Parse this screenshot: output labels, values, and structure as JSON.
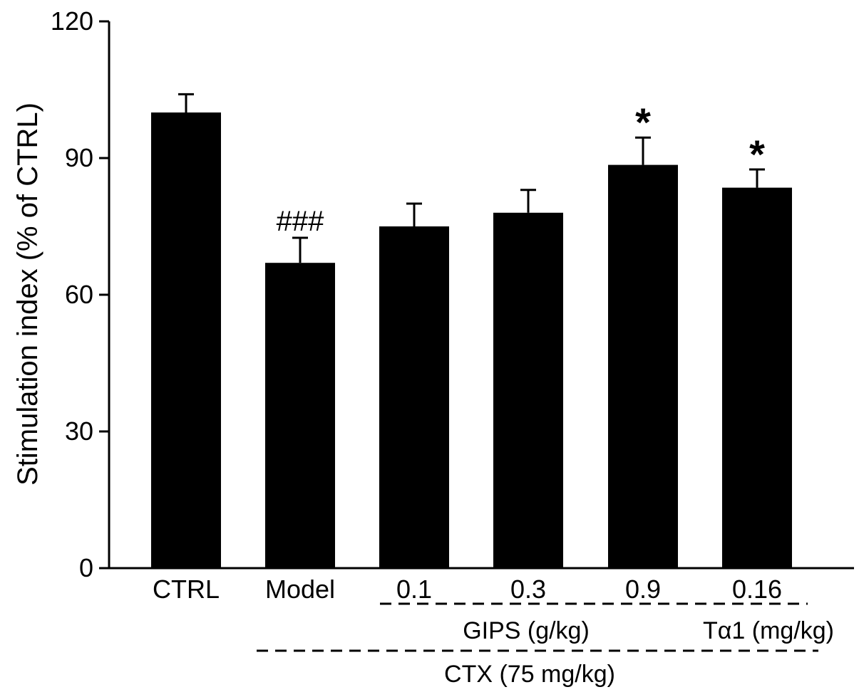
{
  "chart_data": {
    "type": "bar",
    "title": "",
    "xlabel": "",
    "ylabel": "Stimulation index (% of CTRL)",
    "ylim": [
      0,
      120
    ],
    "yticks": [
      0,
      30,
      60,
      90,
      120
    ],
    "categories": [
      "CTRL",
      "Model",
      "0.1",
      "0.3",
      "0.9",
      "0.16"
    ],
    "values": [
      100,
      67,
      75,
      78,
      88.5,
      83.5
    ],
    "errors": [
      4,
      5.5,
      5,
      5,
      6,
      4
    ],
    "annotations": [
      "",
      "###",
      "",
      "",
      "*",
      "*"
    ],
    "groups": [
      {
        "label": "GIPS (g/kg)",
        "categories": [
          "0.1",
          "0.3",
          "0.9"
        ]
      },
      {
        "label": "Tα1 (mg/kg)",
        "categories": [
          "0.16"
        ]
      },
      {
        "label": "CTX (75 mg/kg)",
        "categories": [
          "Model",
          "0.1",
          "0.3",
          "0.9",
          "0.16"
        ]
      }
    ],
    "bar_color": "#000000",
    "grid": false
  }
}
